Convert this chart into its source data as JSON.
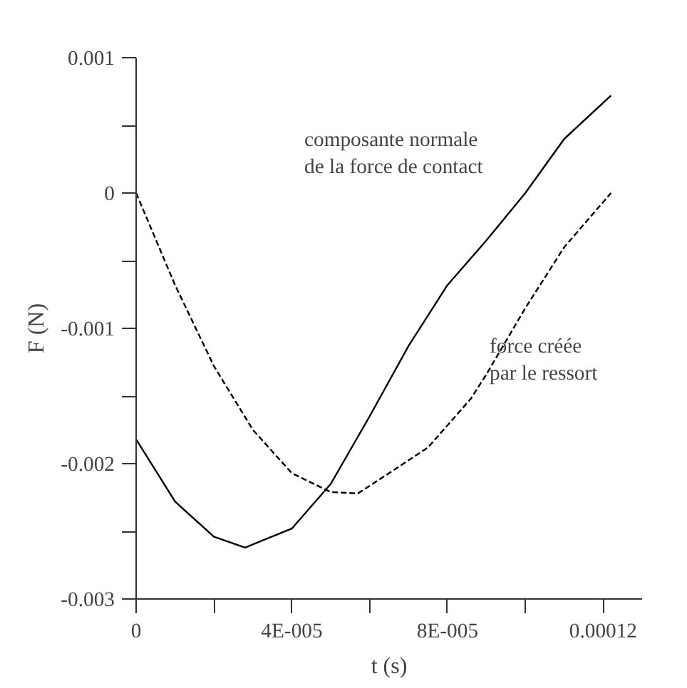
{
  "chart_data": {
    "type": "line",
    "xlabel": "t (s)",
    "ylabel": "F (N)",
    "xlim": [
      0,
      0.00013
    ],
    "ylim": [
      -0.003,
      0.001
    ],
    "xticks": [
      0,
      {
        "value": 2e-05,
        "label": null
      },
      {
        "value": 4e-05,
        "label": "4E-005"
      },
      {
        "value": 6e-05,
        "label": null
      },
      {
        "value": 8e-05,
        "label": "8E-005"
      },
      {
        "value": 0.0001,
        "label": null
      },
      0.00012
    ],
    "yticks": [
      -0.003,
      {
        "value": -0.0025,
        "label": null
      },
      -0.002,
      {
        "value": -0.0015,
        "label": null
      },
      -0.001,
      {
        "value": -0.0005,
        "label": null
      },
      0,
      {
        "value": 0.0005,
        "label": null
      },
      0.001
    ],
    "grid": false,
    "marker": "none",
    "series": [
      {
        "color": "#000000",
        "line_style": "solid",
        "x": [
          0,
          1e-05,
          2e-05,
          2.8e-05,
          4e-05,
          5e-05,
          6e-05,
          7e-05,
          8e-05,
          9e-05,
          0.0001,
          0.00011,
          0.000122
        ],
        "values": [
          -0.00182,
          -0.00228,
          -0.00254,
          -0.00262,
          -0.00248,
          -0.00215,
          -0.00165,
          -0.00113,
          -0.00068,
          -0.00035,
          0,
          0.0004,
          0.00072
        ]
      },
      {
        "color": "#000000",
        "line_style": "dashed",
        "x": [
          0,
          1e-05,
          2e-05,
          3e-05,
          4e-05,
          5e-05,
          5.7e-05,
          6.5e-05,
          7.5e-05,
          8.6e-05,
          9e-05,
          0.0001,
          0.00011,
          0.000122
        ],
        "values": [
          0,
          -0.00068,
          -0.00128,
          -0.00175,
          -0.00207,
          -0.00221,
          -0.00222,
          -0.00207,
          -0.00188,
          -0.00152,
          -0.00134,
          -0.00085,
          -0.0004,
          0
        ]
      }
    ],
    "annotations": [
      "composante normale\nde la force de contact",
      "force créée\npar le ressort"
    ]
  }
}
